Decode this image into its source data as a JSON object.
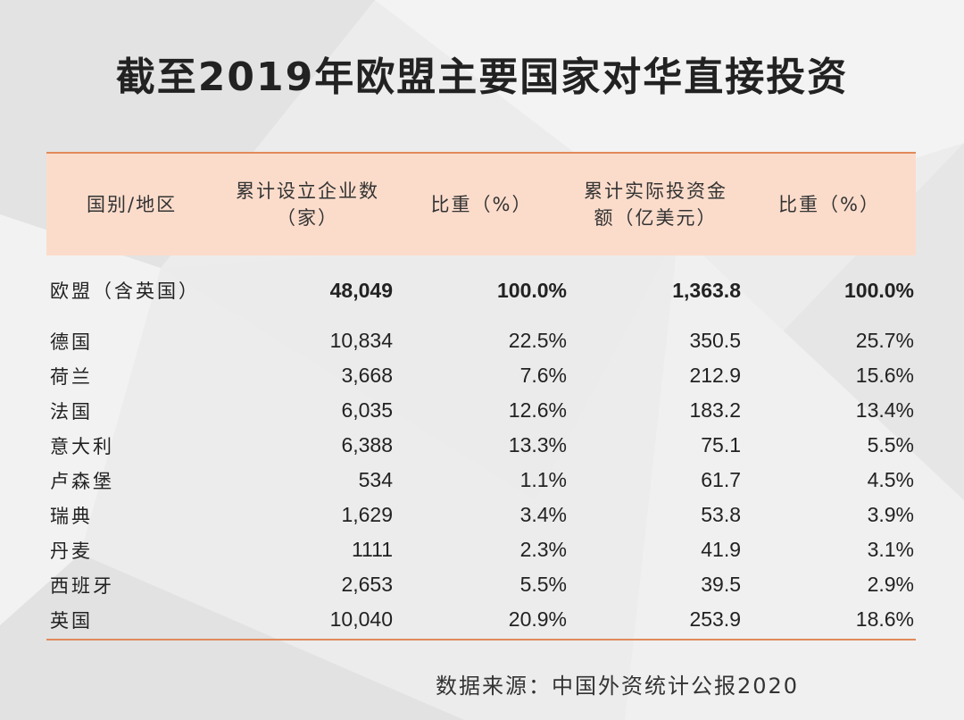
{
  "title": "截至2019年欧盟主要国家对华直接投资",
  "table": {
    "headers": {
      "country": "国别/地区",
      "enterprises_l1": "累计设立企业数",
      "enterprises_l2": "（家）",
      "share1": "比重（%）",
      "investment_l1": "累计实际投资金",
      "investment_l2": "额（亿美元）",
      "share2": "比重（%）"
    },
    "total": {
      "country": "欧盟（含英国）",
      "enterprises": "48,049",
      "share1": "100.0%",
      "investment": "1,363.8",
      "share2": "100.0%"
    },
    "rows": [
      {
        "country": "德国",
        "enterprises": "10,834",
        "share1": "22.5%",
        "investment": "350.5",
        "share2": "25.7%"
      },
      {
        "country": "荷兰",
        "enterprises": "3,668",
        "share1": "7.6%",
        "investment": "212.9",
        "share2": "15.6%"
      },
      {
        "country": "法国",
        "enterprises": "6,035",
        "share1": "12.6%",
        "investment": "183.2",
        "share2": "13.4%"
      },
      {
        "country": "意大利",
        "enterprises": "6,388",
        "share1": "13.3%",
        "investment": "75.1",
        "share2": "5.5%"
      },
      {
        "country": "卢森堡",
        "enterprises": "534",
        "share1": "1.1%",
        "investment": "61.7",
        "share2": "4.5%"
      },
      {
        "country": "瑞典",
        "enterprises": "1,629",
        "share1": "3.4%",
        "investment": "53.8",
        "share2": "3.9%"
      },
      {
        "country": "丹麦",
        "enterprises": "1111",
        "share1": "2.3%",
        "investment": "41.9",
        "share2": "3.1%"
      },
      {
        "country": "西班牙",
        "enterprises": "2,653",
        "share1": "5.5%",
        "investment": "39.5",
        "share2": "2.9%"
      },
      {
        "country": "英国",
        "enterprises": "10,040",
        "share1": "20.9%",
        "investment": "253.9",
        "share2": "18.6%"
      }
    ]
  },
  "source": "数据来源：中国外资统计公报2020",
  "colors": {
    "header_band": "#fbdccb",
    "rule_line": "#e08a5a",
    "background": "#ececec"
  }
}
